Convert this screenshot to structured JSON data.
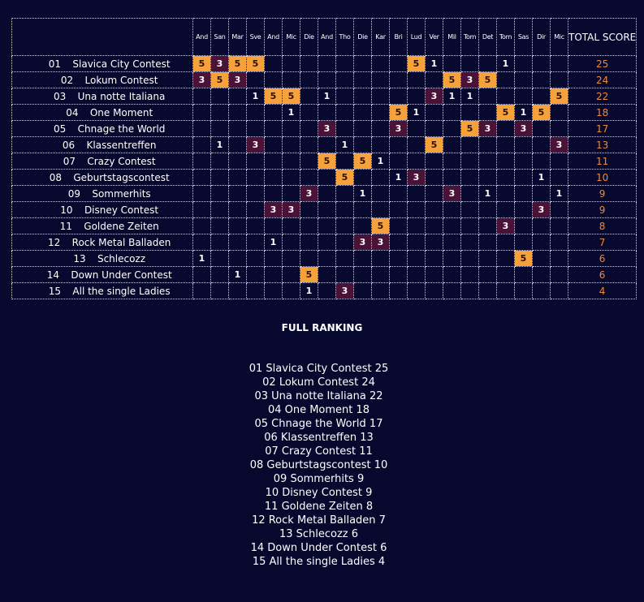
{
  "colors": {
    "background": "#07082e",
    "five_points": "#f7a13b",
    "three_points": "#4a1236",
    "total_text": "#f0883a",
    "grid": "#cfcfcf"
  },
  "scoreboard": {
    "voters": [
      "And",
      "San",
      "Mar",
      "Sve",
      "And",
      "Mic",
      "Die",
      "And",
      "Tho",
      "Die",
      "Kar",
      "Bri",
      "Lud",
      "Ver",
      "Mil",
      "Tom",
      "Det",
      "Tom",
      "Sas",
      "Dir",
      "Mic"
    ],
    "total_header": "TOTAL SCORE",
    "rows": [
      {
        "rank": "01",
        "name": "Slavica City Contest",
        "points": [
          "5",
          "3",
          "5",
          "5",
          "",
          "",
          "",
          "",
          "",
          "",
          "",
          "",
          "5",
          "1",
          "",
          "",
          "",
          "1",
          "",
          "",
          ""
        ],
        "total": "25"
      },
      {
        "rank": "02",
        "name": "Lokum Contest",
        "points": [
          "3",
          "5",
          "3",
          "",
          "",
          "",
          "",
          "",
          "",
          "",
          "",
          "",
          "",
          "",
          "5",
          "3",
          "5",
          "",
          "",
          "",
          ""
        ],
        "total": "24"
      },
      {
        "rank": "03",
        "name": "Una notte Italiana",
        "points": [
          "",
          "",
          "",
          "1",
          "5",
          "5",
          "",
          "1",
          "",
          "",
          "",
          "",
          "",
          "3",
          "1",
          "1",
          "",
          "",
          "",
          "",
          "5"
        ],
        "total": "22"
      },
      {
        "rank": "04",
        "name": "One Moment",
        "points": [
          "",
          "",
          "",
          "",
          "",
          "1",
          "",
          "",
          "",
          "",
          "",
          "5",
          "1",
          "",
          "",
          "",
          "",
          "5",
          "1",
          "5",
          ""
        ],
        "total": "18"
      },
      {
        "rank": "05",
        "name": "Chnage the World",
        "points": [
          "",
          "",
          "",
          "",
          "",
          "",
          "",
          "3",
          "",
          "",
          "",
          "3",
          "",
          "",
          "",
          "5",
          "3",
          "",
          "3",
          "",
          ""
        ],
        "total": "17"
      },
      {
        "rank": "06",
        "name": "Klassentreffen",
        "points": [
          "",
          "1",
          "",
          "3",
          "",
          "",
          "",
          "",
          "1",
          "",
          "",
          "",
          "",
          "5",
          "",
          "",
          "",
          "",
          "",
          "",
          "3"
        ],
        "total": "13"
      },
      {
        "rank": "07",
        "name": "Crazy Contest",
        "points": [
          "",
          "",
          "",
          "",
          "",
          "",
          "",
          "5",
          "",
          "5",
          "1",
          "",
          "",
          "",
          "",
          "",
          "",
          "",
          "",
          "",
          ""
        ],
        "total": "11"
      },
      {
        "rank": "08",
        "name": "Geburtstagscontest",
        "points": [
          "",
          "",
          "",
          "",
          "",
          "",
          "",
          "",
          "5",
          "",
          "",
          "1",
          "3",
          "",
          "",
          "",
          "",
          "",
          "",
          "1",
          ""
        ],
        "total": "10"
      },
      {
        "rank": "09",
        "name": "Sommerhits",
        "points": [
          "",
          "",
          "",
          "",
          "",
          "",
          "3",
          "",
          "",
          "1",
          "",
          "",
          "",
          "",
          "3",
          "",
          "1",
          "",
          "",
          "",
          "1"
        ],
        "total": "9"
      },
      {
        "rank": "10",
        "name": "Disney Contest",
        "points": [
          "",
          "",
          "",
          "",
          "3",
          "3",
          "",
          "",
          "",
          "",
          "",
          "",
          "",
          "",
          "",
          "",
          "",
          "",
          "",
          "3",
          ""
        ],
        "total": "9"
      },
      {
        "rank": "11",
        "name": "Goldene Zeiten",
        "points": [
          "",
          "",
          "",
          "",
          "",
          "",
          "",
          "",
          "",
          "",
          "5",
          "",
          "",
          "",
          "",
          "",
          "",
          "3",
          "",
          "",
          ""
        ],
        "total": "8"
      },
      {
        "rank": "12",
        "name": "Rock Metal Balladen",
        "points": [
          "",
          "",
          "",
          "",
          "1",
          "",
          "",
          "",
          "",
          "3",
          "3",
          "",
          "",
          "",
          "",
          "",
          "",
          "",
          "",
          "",
          ""
        ],
        "total": "7"
      },
      {
        "rank": "13",
        "name": "Schlecozz",
        "points": [
          "1",
          "",
          "",
          "",
          "",
          "",
          "",
          "",
          "",
          "",
          "",
          "",
          "",
          "",
          "",
          "",
          "",
          "",
          "5",
          "",
          ""
        ],
        "total": "6"
      },
      {
        "rank": "14",
        "name": "Down Under Contest",
        "points": [
          "",
          "",
          "1",
          "",
          "",
          "",
          "5",
          "",
          "",
          "",
          "",
          "",
          "",
          "",
          "",
          "",
          "",
          "",
          "",
          "",
          ""
        ],
        "total": "6"
      },
      {
        "rank": "15",
        "name": "All the single Ladies",
        "points": [
          "",
          "",
          "",
          "",
          "",
          "",
          "1",
          "",
          "3",
          "",
          "",
          "",
          "",
          "",
          "",
          "",
          "",
          "",
          "",
          "",
          ""
        ],
        "total": "4"
      }
    ]
  },
  "full_ranking": {
    "title": "FULL RANKING",
    "items": [
      "01 Slavica City Contest 25",
      "02 Lokum Contest 24",
      "03 Una notte Italiana 22",
      "04 One Moment 18",
      "05 Chnage the World 17",
      "06 Klassentreffen 13",
      "07 Crazy Contest 11",
      "08 Geburtstagscontest 10",
      "09 Sommerhits 9",
      "10 Disney Contest 9",
      "11 Goldene Zeiten 8",
      "12 Rock Metal Balladen 7",
      "13 Schlecozz 6",
      "14 Down Under Contest 6",
      "15 All the single Ladies 4"
    ]
  }
}
